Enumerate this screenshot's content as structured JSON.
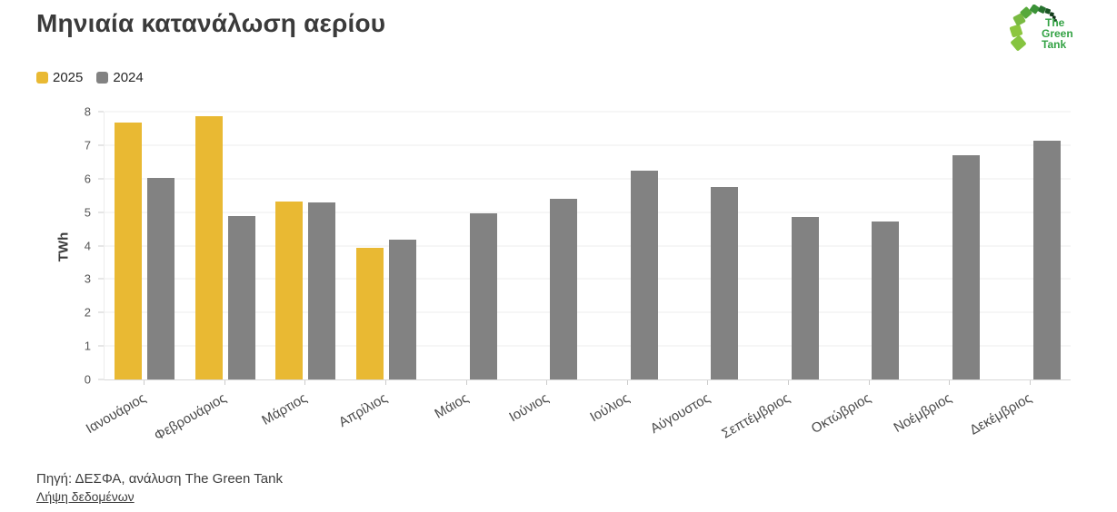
{
  "header": {
    "title": "Μηνιαία κατανάλωση αερίου"
  },
  "logo": {
    "name": "The Green Tank",
    "lines": [
      "The",
      "Green",
      "Tank"
    ],
    "text_color": "#33a244"
  },
  "chart_data": {
    "type": "bar",
    "title": "Μηνιαία κατανάλωση αερίου",
    "categories": [
      "Ιανουάριος",
      "Φεβρουάριος",
      "Μάρτιος",
      "Απρίλιος",
      "Μάιος",
      "Ιούνιος",
      "Ιούλιος",
      "Αύγουστος",
      "Σεπτέμβριος",
      "Οκτώβριος",
      "Νοέμβριος",
      "Δεκέμβριος"
    ],
    "series": [
      {
        "name": "2025",
        "color": "#e9b933",
        "values": [
          7.68,
          7.86,
          5.31,
          3.93,
          null,
          null,
          null,
          null,
          null,
          null,
          null,
          null
        ]
      },
      {
        "name": "2024",
        "color": "#828282",
        "values": [
          6.03,
          4.88,
          5.28,
          4.19,
          4.97,
          5.4,
          6.24,
          5.75,
          4.85,
          4.72,
          6.69,
          7.13
        ]
      }
    ],
    "xlabel": "",
    "ylabel": "TWh",
    "ylim": [
      0,
      8
    ],
    "yticks": [
      0,
      1,
      2,
      3,
      4,
      5,
      6,
      7,
      8
    ],
    "grid": true,
    "legend_position": "top-left"
  },
  "footer": {
    "source": "Πηγή: ΔΕΣΦΑ, ανάλυση The Green Tank",
    "download_link": "Λήψη δεδομένων"
  }
}
